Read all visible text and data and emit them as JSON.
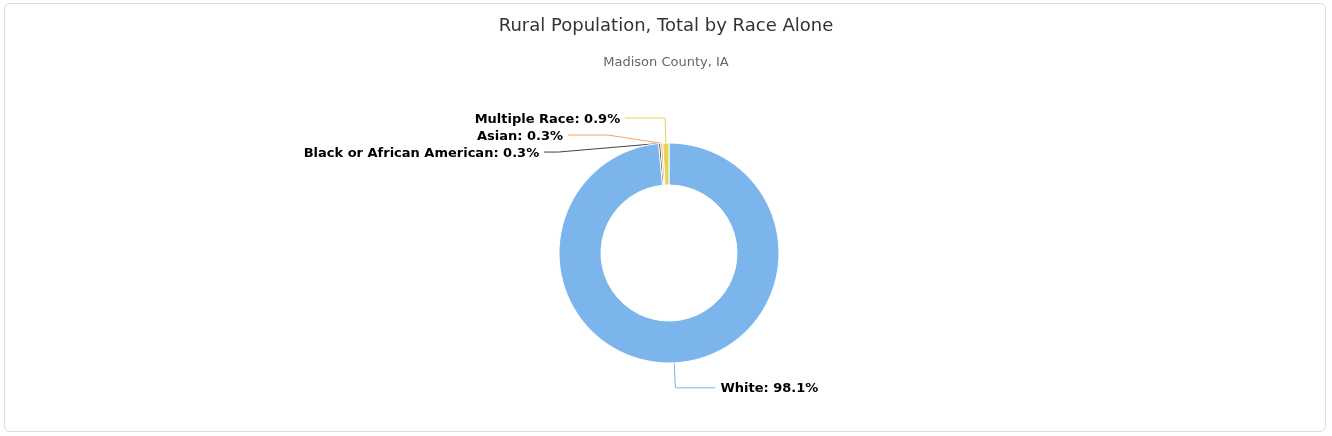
{
  "chart_data": {
    "type": "donut",
    "title": "Rural Population, Total by Race Alone",
    "subtitle": "Madison County, IA",
    "categories": [
      "White",
      "Black or African American",
      "Asian",
      "Multiple Race"
    ],
    "values": [
      98.1,
      0.3,
      0.3,
      0.9
    ],
    "colors": [
      "#7cb5ec",
      "#434348",
      "#f7a35c",
      "#e4d354"
    ],
    "value_labels": [
      "98.1%",
      "0.3%",
      "0.3%",
      "0.9%"
    ]
  }
}
